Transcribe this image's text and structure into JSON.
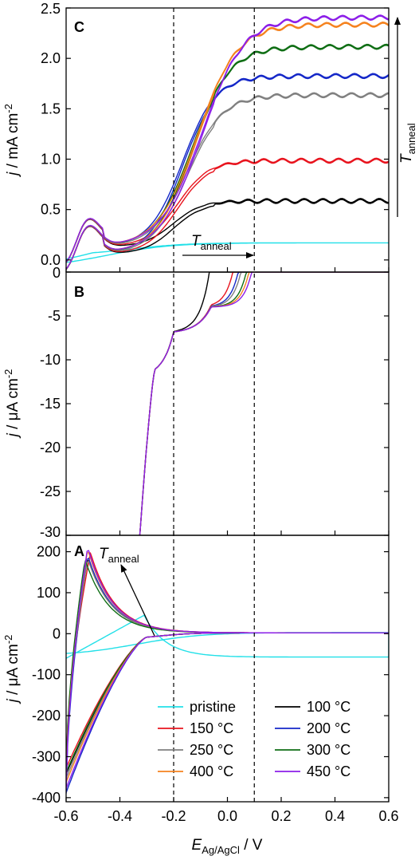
{
  "chart_data": {
    "type": "line",
    "x_axis": {
      "range": [
        -0.6,
        0.6
      ],
      "ticks": [
        "-0.6",
        "-0.4",
        "-0.2",
        "0.0",
        "0.2",
        "0.4",
        "0.6"
      ],
      "label_main": "E",
      "label_sub": "Ag/AgCl",
      "label_unit": " / V"
    },
    "reference_lines_x": [
      -0.2,
      0.1
    ],
    "legend": {
      "entries": [
        {
          "name": "pristine",
          "color": "#22e0e8"
        },
        {
          "name": "100 °C",
          "color": "#000000"
        },
        {
          "name": "150 °C",
          "color": "#e8141e"
        },
        {
          "name": "200 °C",
          "color": "#1427c8"
        },
        {
          "name": "250 °C",
          "color": "#808080"
        },
        {
          "name": "300 °C",
          "color": "#0f6e14"
        },
        {
          "name": "400 °C",
          "color": "#f5821e"
        },
        {
          "name": "450 °C",
          "color": "#8c1ee8"
        }
      ]
    },
    "panels": [
      {
        "id": "C",
        "letter": "C",
        "ylabel_main": "j",
        "ylabel_unit": " / mA cm",
        "ylabel_exp": "-2",
        "ylim": [
          -0.12,
          2.5
        ],
        "yticks": [
          0.0,
          0.5,
          1.0,
          1.5,
          2.0,
          2.5
        ],
        "ytick_labels": [
          "0.0",
          "0.5",
          "1.0",
          "1.5",
          "2.0",
          "2.5"
        ],
        "annotations": {
          "arrow_label_main": "T",
          "arrow_label_sub": "anneal",
          "side_arrow_label_main": "T",
          "side_arrow_label_sub": "anneal"
        },
        "plateaus": {
          "pristine": 0.17,
          "100 °C": 0.51,
          "150 °C": 0.91,
          "200 °C": 1.75,
          "250 °C": 1.56,
          "300 °C": 2.04,
          "400 °C": 2.26,
          "450 °C": 2.33
        }
      },
      {
        "id": "B",
        "letter": "B",
        "ylabel_main": "j",
        "ylabel_unit": " / μA cm",
        "ylabel_exp": "-2",
        "ylim": [
          -30,
          0
        ],
        "yticks": [
          0,
          -5,
          -10,
          -15,
          -20,
          -25,
          -30
        ],
        "ytick_labels": [
          "0",
          "-5",
          "-10",
          "-15",
          "-20",
          "-25",
          "-30"
        ]
      },
      {
        "id": "A",
        "letter": "A",
        "ylabel_main": "j",
        "ylabel_unit": " / μA cm",
        "ylabel_exp": "-2",
        "ylim": [
          -410,
          240
        ],
        "yticks": [
          200,
          100,
          0,
          -100,
          -200,
          -300,
          -400
        ],
        "ytick_labels": [
          "200",
          "100",
          "0",
          "-100",
          "-200",
          "-300",
          "-400"
        ],
        "annotations": {
          "arrow_label_main": "T",
          "arrow_label_sub": "anneal"
        },
        "peaks": {
          "pristine": {
            "x": -0.31,
            "y": 45
          },
          "100 °C": {
            "x": -0.52,
            "y": 185
          },
          "150 °C": {
            "x": -0.51,
            "y": 197
          },
          "200 °C": {
            "x": -0.52,
            "y": 190
          },
          "250 °C": {
            "x": -0.52,
            "y": 182
          },
          "300 °C": {
            "x": -0.53,
            "y": 180
          },
          "400 °C": {
            "x": -0.52,
            "y": 205
          },
          "450 °C": {
            "x": -0.52,
            "y": 210
          }
        },
        "start_values": {
          "pristine": -60,
          "100 °C": -345,
          "150 °C": -330,
          "200 °C": -390,
          "250 °C": -355,
          "300 °C": -340,
          "400 °C": -365,
          "450 °C": -380
        }
      }
    ]
  }
}
